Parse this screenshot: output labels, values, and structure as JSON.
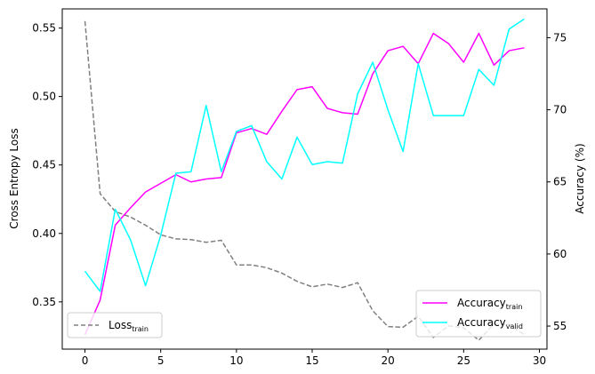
{
  "chart_data": {
    "type": "line",
    "x": [
      0,
      1,
      2,
      3,
      4,
      5,
      6,
      7,
      8,
      9,
      10,
      11,
      12,
      13,
      14,
      15,
      16,
      17,
      18,
      19,
      20,
      21,
      22,
      23,
      24,
      25,
      26,
      27,
      28,
      29
    ],
    "xlim": [
      -1.5,
      30.5
    ],
    "xticks": [
      "0",
      "5",
      "10",
      "15",
      "20",
      "25",
      "30"
    ],
    "ylabel_left": "Cross Entropy Loss",
    "ylabel_right": "Accuracy (%)",
    "ylim_left": [
      0.3155,
      0.564
    ],
    "ylim_right": [
      53.4,
      77.0
    ],
    "yticks_left": [
      "0.35",
      "0.40",
      "0.45",
      "0.50",
      "0.55"
    ],
    "yticks_right": [
      "55",
      "60",
      "65",
      "70",
      "75"
    ],
    "series": [
      {
        "name": "Loss",
        "sub": "train",
        "axis": "left",
        "color": "#808080",
        "dash": true,
        "values": [
          0.555,
          0.429,
          0.416,
          0.412,
          0.406,
          0.399,
          0.396,
          0.3955,
          0.3935,
          0.395,
          0.377,
          0.377,
          0.375,
          0.371,
          0.365,
          0.361,
          0.363,
          0.3605,
          0.364,
          0.3435,
          0.332,
          0.3315,
          0.3395,
          0.324,
          0.3325,
          0.331,
          0.322,
          0.334,
          0.3335,
          0.326
        ]
      },
      {
        "name": "Accuracy",
        "sub": "train",
        "axis": "right",
        "color": "#ff00ff",
        "dash": false,
        "values": [
          54.4,
          56.8,
          62.0,
          63.2,
          64.3,
          64.9,
          65.5,
          65.0,
          65.2,
          65.3,
          68.4,
          68.7,
          68.3,
          69.9,
          71.4,
          71.6,
          70.1,
          69.8,
          69.7,
          72.5,
          74.1,
          74.4,
          73.2,
          75.3,
          74.6,
          73.3,
          75.3,
          73.1,
          74.1,
          74.3
        ]
      },
      {
        "name": "Accuracy",
        "sub": "valid",
        "axis": "right",
        "color": "#00ffff",
        "dash": false,
        "values": [
          58.8,
          57.4,
          63.1,
          61.0,
          57.8,
          61.3,
          65.6,
          65.7,
          70.3,
          65.7,
          68.5,
          68.9,
          66.4,
          65.2,
          68.1,
          66.2,
          66.4,
          66.3,
          71.1,
          73.3,
          70.0,
          67.1,
          73.2,
          69.6,
          69.6,
          69.6,
          72.8,
          71.7,
          75.6,
          76.3
        ]
      }
    ],
    "legend_left": {
      "placement": "lower-left"
    },
    "legend_right": {
      "placement": "lower-right"
    }
  }
}
